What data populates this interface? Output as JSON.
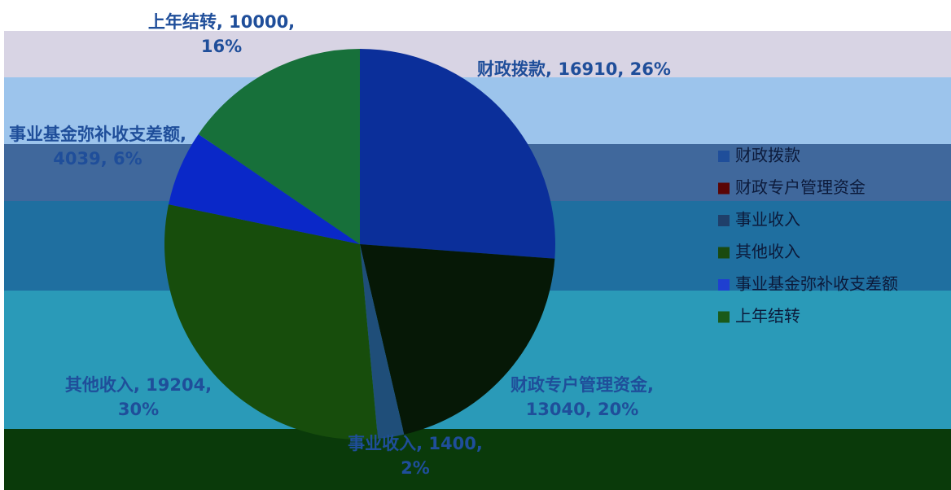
{
  "chart_data": {
    "type": "pie",
    "categories": [
      "财政拨款",
      "财政专户管理资金",
      "事业收入",
      "其他收入",
      "事业基金弥补收支差额",
      "上年结转"
    ],
    "values": [
      16910,
      13040,
      1400,
      19204,
      4039,
      10000
    ],
    "value_labels": [
      "财政拨款, 16910, 26%",
      "财政专户管理资金, 13040, 20%",
      "事业收入, 1400, 2%",
      "其他收入, 19204, 30%",
      "事业基金弥补收支差额, 4039, 6%",
      "上年结转, 10000, 16%"
    ],
    "colors": [
      "#0b2f9a",
      "#061806",
      "#1f4e79",
      "#174d0c",
      "#0a28c8",
      "#17703a"
    ],
    "legend_colors": [
      "#1f4e9a",
      "#5a0505",
      "#1f3f6a",
      "#1a4a10",
      "#1f3fd0",
      "#1a5a1a"
    ],
    "legend": "right"
  }
}
